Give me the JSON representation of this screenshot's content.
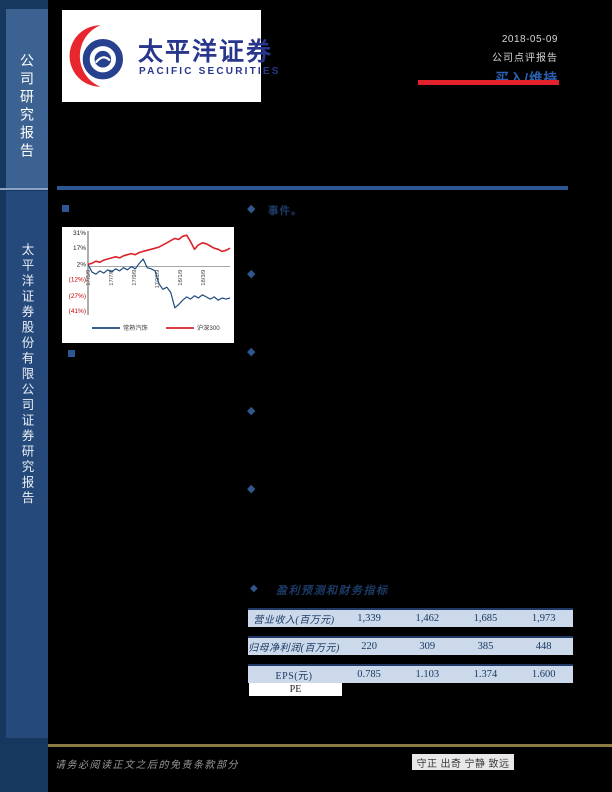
{
  "sidebar": {
    "top_label": "公司研究报告",
    "bottom_label": "太平洋证券股份有限公司证券研究报告"
  },
  "header": {
    "logo_cn": "太平洋证券",
    "logo_en": "PACIFIC SECURITIES",
    "date": "2018-05-09",
    "report_type": "公司点评报告",
    "rating": "买入/维持"
  },
  "icons": {
    "diamond": "◆",
    "square": "■"
  },
  "bullets": {
    "event_label": "事件。"
  },
  "chart_data": {
    "type": "line",
    "x_tick_labels": [
      "17/5/9",
      "17/7/9",
      "17/9/9",
      "17/11/9",
      "18/1/9",
      "18/3/9"
    ],
    "y_tick_labels": [
      "31%",
      "17%",
      "2%",
      "(12%)",
      "(27%)",
      "(41%)"
    ],
    "y_tick_values": [
      31,
      17,
      2,
      -12,
      -27,
      -41
    ],
    "ylim": [
      -41,
      31
    ],
    "grid": false,
    "legend_position": "bottom",
    "series": [
      {
        "name": "常熟汽饰",
        "color": "#1f4a7d",
        "values": [
          2,
          -5,
          -7,
          -4,
          -6,
          -3,
          -5,
          -2,
          -4,
          -1,
          -3,
          0,
          -2,
          3,
          7,
          -1,
          -2,
          -4,
          -16,
          -21,
          -19,
          -24,
          -38,
          -35,
          -31,
          -28,
          -30,
          -27,
          -29,
          -26,
          -28,
          -30,
          -28,
          -31,
          -29,
          -30,
          -29
        ]
      },
      {
        "name": "沪深300",
        "color": "#d9222a",
        "values": [
          2,
          3,
          5,
          4,
          6,
          7,
          8,
          9,
          8,
          10,
          11,
          12,
          11,
          13,
          14,
          15,
          16,
          17,
          18,
          20,
          22,
          24,
          26,
          25,
          28,
          29,
          23,
          16,
          20,
          22,
          21,
          19,
          17,
          16,
          14,
          15,
          17
        ]
      }
    ]
  },
  "table": {
    "title": "盈利预测和财务指标",
    "rows": [
      {
        "label": "营业收入(百万元)",
        "values": [
          "1,339",
          "1,462",
          "1,685",
          "1,973"
        ]
      },
      {
        "label": "归母净利润(百万元)",
        "values": [
          "220",
          "309",
          "385",
          "448"
        ]
      },
      {
        "label": "EPS(元)",
        "values": [
          "0.785",
          "1.103",
          "1.374",
          "1.600"
        ]
      }
    ],
    "pe_label": "PE"
  },
  "footer": {
    "disclaimer": "请务必阅读正文之后的免责条款部分",
    "motto": "守正 出奇 宁静 致远"
  },
  "colors": {
    "sidebar_dark": "#16375e",
    "sidebar_top_panel": "#3c6292",
    "sidebar_bottom_panel": "#24497a",
    "accent_blue": "#2d5793",
    "rating_blue": "#2b62b4",
    "red_bar": "#e1222a",
    "logo_blue": "#28378c",
    "logo_red": "#e8262d",
    "table_row_bg": "#ccd9eb",
    "table_text": "#17375e",
    "gold_line": "#8b7a42"
  }
}
